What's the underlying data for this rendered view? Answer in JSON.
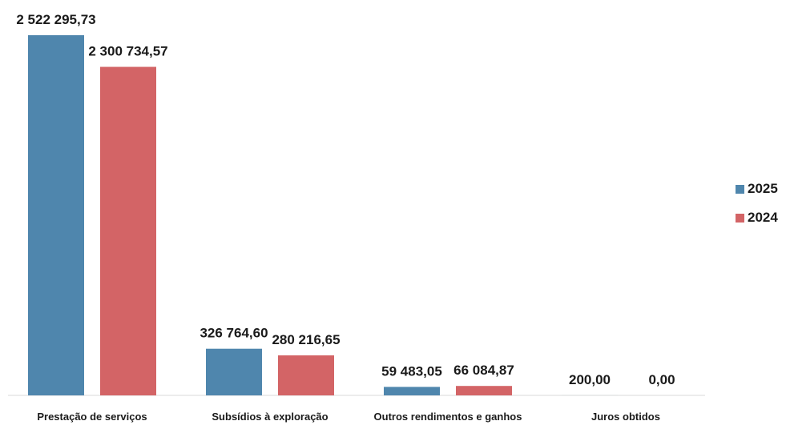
{
  "chart_data": {
    "type": "bar",
    "categories": [
      "Prestação de serviços",
      "Subsídios à exploração",
      "Outros rendimentos e ganhos",
      "Juros obtidos"
    ],
    "series": [
      {
        "name": "2025",
        "color": "#4f86ad",
        "values": [
          2522295.73,
          326764.6,
          59483.05,
          200.0
        ],
        "labels": [
          "2 522 295,73",
          "326 764,60",
          "59 483,05",
          "200,00"
        ]
      },
      {
        "name": "2024",
        "color": "#d36466",
        "values": [
          2300734.57,
          280216.65,
          66084.87,
          0.0
        ],
        "labels": [
          "2 300 734,57",
          "280 216,65",
          "66 084,87",
          "0,00"
        ]
      }
    ],
    "ylim": [
      0,
      2522295.73
    ],
    "grid": false,
    "legend_position": "right"
  }
}
